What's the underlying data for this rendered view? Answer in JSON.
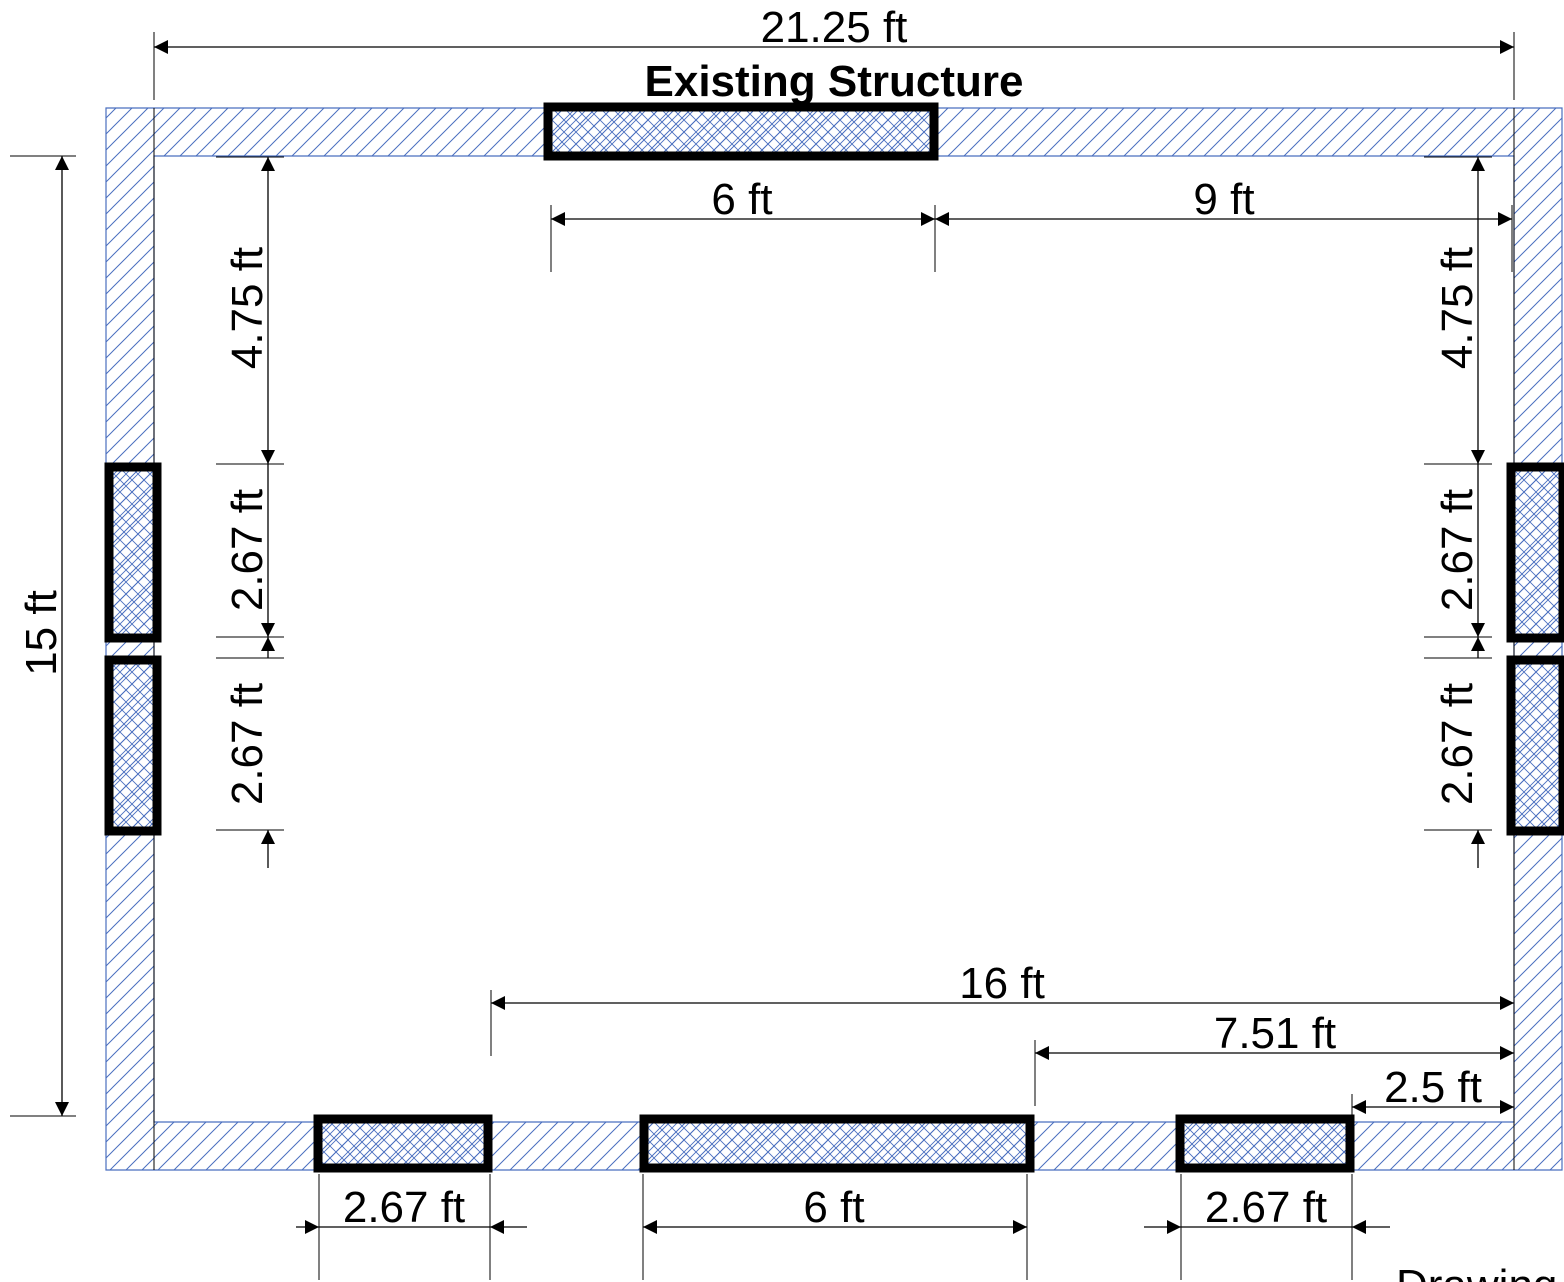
{
  "title": "Existing Structure",
  "footer_label": "Drawing S",
  "colors": {
    "wall_hatch": "#4a6fbf",
    "opening_outline": "#000000",
    "background": "#ffffff"
  },
  "dimensions": {
    "overall_width": "21.25 ft",
    "overall_height": "15 ft",
    "top_opening_width": "6 ft",
    "top_opening_to_right": "9 ft",
    "left_top_offset": "4.75 ft",
    "left_window_1": "2.67 ft",
    "left_window_2": "2.67 ft",
    "right_top_offset": "4.75 ft",
    "right_window_1": "2.67 ft",
    "right_window_2": "2.67 ft",
    "bottom_left_to_right": "16 ft",
    "bottom_mid_to_right": "7.51 ft",
    "bottom_right_offset": "2.5 ft",
    "bottom_window_left": "2.67 ft",
    "bottom_door_mid": "6 ft",
    "bottom_window_right": "2.67 ft"
  }
}
